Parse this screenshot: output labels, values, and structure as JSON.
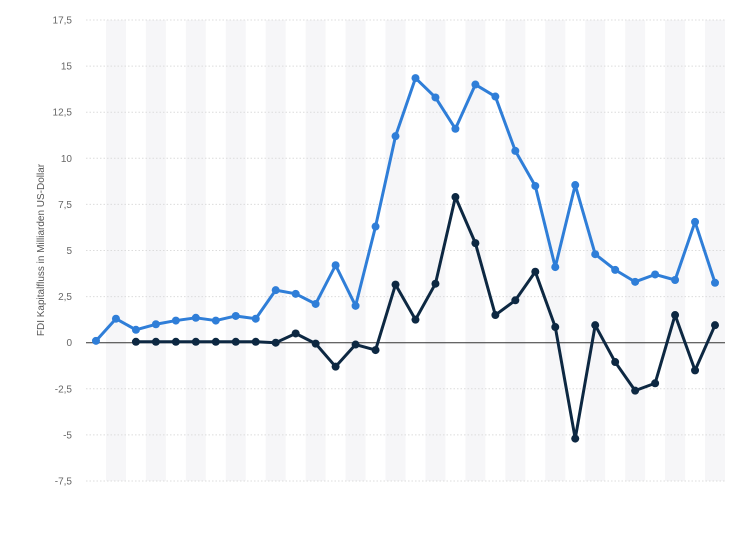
{
  "chart_data": {
    "type": "line",
    "ylabel": "FDI Kapitalfluss in Milliarden US-Dollar",
    "ylim": [
      -7.5,
      17.5
    ],
    "y_ticks": [
      "17,5",
      "15",
      "12,5",
      "10",
      "7,5",
      "5",
      "2,5",
      "0",
      "-2,5",
      "-5",
      "-7,5"
    ],
    "y_tick_values": [
      17.5,
      15,
      12.5,
      10,
      7.5,
      5,
      2.5,
      0,
      -2.5,
      -5,
      -7.5
    ],
    "x_count": 32,
    "grid": true,
    "legend": "none",
    "series": [
      {
        "color": "#2f7ed8",
        "values": [
          0.1,
          1.3,
          0.7,
          1.0,
          1.2,
          1.35,
          1.2,
          1.45,
          1.3,
          2.85,
          2.65,
          2.1,
          4.2,
          2.0,
          6.3,
          11.2,
          14.35,
          13.3,
          11.6,
          14.0,
          13.35,
          10.4,
          8.5,
          4.1,
          8.55,
          4.8,
          3.95,
          3.3,
          3.7,
          3.4,
          6.55,
          3.25
        ]
      },
      {
        "color": "#0d2842",
        "values": [
          null,
          null,
          0.05,
          0.05,
          0.05,
          0.05,
          0.05,
          0.05,
          0.05,
          0.0,
          0.5,
          -0.05,
          -1.3,
          -0.1,
          -0.4,
          3.15,
          1.25,
          3.2,
          7.9,
          5.4,
          1.5,
          2.3,
          3.85,
          0.85,
          -5.2,
          0.95,
          -1.05,
          -2.6,
          -2.2,
          1.5,
          -1.5,
          0.95
        ]
      }
    ]
  }
}
